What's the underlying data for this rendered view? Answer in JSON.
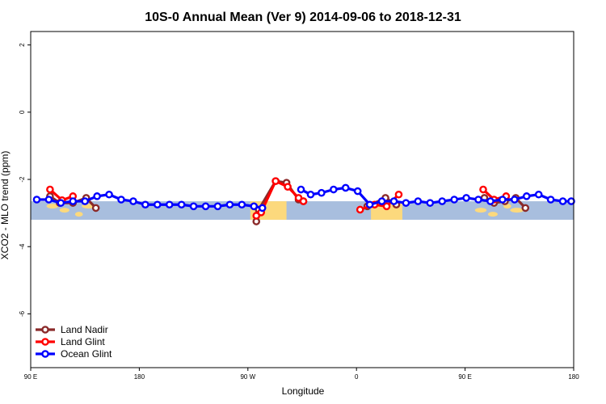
{
  "chart_data": {
    "type": "line",
    "title": "10S-0 Annual Mean (Ver 9)   2014-09-06 to 2018-12-31",
    "xlabel": "Longitude",
    "ylabel": "XCO2 - MLO trend (ppm)",
    "xlim": [
      90,
      540
    ],
    "ylim": [
      -7.6,
      2.4
    ],
    "x_ticks": [
      {
        "value": 90,
        "label": "90 E"
      },
      {
        "value": 180,
        "label": "180"
      },
      {
        "value": 270,
        "label": "90 W"
      },
      {
        "value": 360,
        "label": "0"
      },
      {
        "value": 450,
        "label": "90 E"
      },
      {
        "value": 540,
        "label": "180"
      }
    ],
    "y_ticks": [
      {
        "value": 2,
        "label": "2"
      },
      {
        "value": 0,
        "label": "0"
      },
      {
        "value": -2,
        "label": "-2"
      },
      {
        "value": -4,
        "label": "-4"
      },
      {
        "value": -6,
        "label": "-6"
      }
    ],
    "grid": false,
    "legend_position": "bottom-left",
    "map_band": {
      "lat_range": [
        -10,
        0
      ],
      "y_range": [
        -3.2,
        -2.65
      ],
      "ocean_color": "#a8bede",
      "land_color": "#fcd97d",
      "land_spans": [
        [
          272,
          302
        ],
        [
          372,
          398
        ]
      ]
    },
    "series": [
      {
        "name": "Land Nadir",
        "color": "#8b2a2a",
        "points": [
          [
            106,
            -2.5
          ],
          [
            114,
            -2.7
          ],
          [
            125,
            -2.7
          ],
          [
            136,
            -2.55
          ],
          [
            144,
            -2.85
          ],
          [
            null,
            null
          ],
          [
            277,
            -3.25
          ],
          [
            279,
            -2.9
          ],
          [
            293,
            -2.05
          ],
          [
            302,
            -2.1
          ],
          [
            312,
            -2.6
          ],
          [
            316,
            -2.65
          ],
          [
            null,
            null
          ],
          [
            369,
            -2.8
          ],
          [
            384,
            -2.55
          ],
          [
            393,
            -2.75
          ],
          [
            null,
            null
          ],
          [
            466,
            -2.55
          ],
          [
            474,
            -2.7
          ],
          [
            483,
            -2.65
          ],
          [
            492,
            -2.55
          ],
          [
            500,
            -2.85
          ]
        ]
      },
      {
        "name": "Land Glint",
        "color": "#ff0000",
        "points": [
          [
            106,
            -2.3
          ],
          [
            116,
            -2.62
          ],
          [
            125,
            -2.5
          ],
          [
            null,
            null
          ],
          [
            277,
            -3.08
          ],
          [
            281,
            -2.98
          ],
          [
            293,
            -2.05
          ],
          [
            303,
            -2.22
          ],
          [
            312,
            -2.55
          ],
          [
            316,
            -2.65
          ],
          [
            null,
            null
          ],
          [
            363,
            -2.9
          ],
          [
            375,
            -2.75
          ],
          [
            385,
            -2.8
          ],
          [
            395,
            -2.45
          ],
          [
            null,
            null
          ],
          [
            465,
            -2.3
          ],
          [
            474,
            -2.6
          ],
          [
            484,
            -2.5
          ]
        ]
      },
      {
        "name": "Ocean Glint",
        "color": "#0000ff",
        "points": [
          [
            95,
            -2.6
          ],
          [
            105,
            -2.6
          ],
          [
            115,
            -2.7
          ],
          [
            125,
            -2.65
          ],
          [
            135,
            -2.65
          ],
          [
            145,
            -2.5
          ],
          [
            155,
            -2.45
          ],
          [
            165,
            -2.6
          ],
          [
            175,
            -2.65
          ],
          [
            185,
            -2.75
          ],
          [
            195,
            -2.75
          ],
          [
            205,
            -2.75
          ],
          [
            215,
            -2.75
          ],
          [
            225,
            -2.8
          ],
          [
            235,
            -2.8
          ],
          [
            245,
            -2.8
          ],
          [
            255,
            -2.75
          ],
          [
            265,
            -2.75
          ],
          [
            275,
            -2.8
          ],
          [
            282,
            -2.85
          ],
          [
            null,
            null
          ],
          [
            314,
            -2.3
          ],
          [
            322,
            -2.45
          ],
          [
            331,
            -2.4
          ],
          [
            341,
            -2.3
          ],
          [
            351,
            -2.25
          ],
          [
            361,
            -2.35
          ],
          [
            371,
            -2.75
          ],
          [
            381,
            -2.65
          ],
          [
            391,
            -2.65
          ],
          [
            401,
            -2.7
          ],
          [
            411,
            -2.65
          ],
          [
            421,
            -2.7
          ],
          [
            431,
            -2.65
          ],
          [
            441,
            -2.6
          ],
          [
            451,
            -2.55
          ],
          [
            461,
            -2.6
          ],
          [
            471,
            -2.65
          ],
          [
            481,
            -2.6
          ],
          [
            491,
            -2.6
          ],
          [
            501,
            -2.5
          ],
          [
            511,
            -2.45
          ],
          [
            521,
            -2.6
          ],
          [
            531,
            -2.65
          ],
          [
            538,
            -2.65
          ]
        ]
      }
    ]
  }
}
